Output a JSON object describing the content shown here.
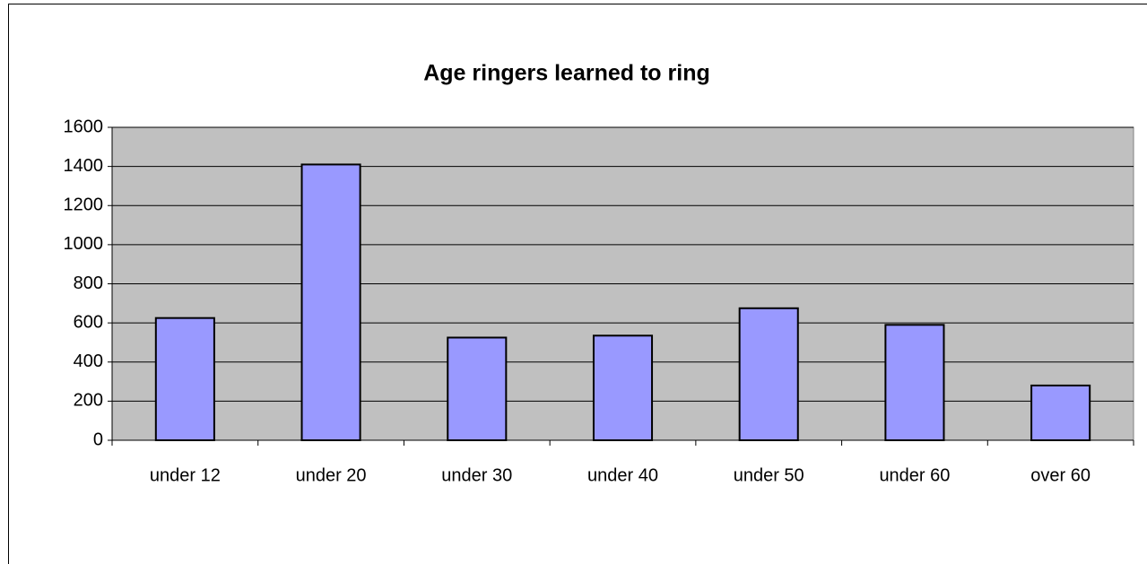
{
  "chart_data": {
    "type": "bar",
    "title": "Age ringers learned to ring",
    "categories": [
      "under 12",
      "under 20",
      "under 30",
      "under 40",
      "under 50",
      "under 60",
      "over 60"
    ],
    "values": [
      625,
      1410,
      525,
      535,
      675,
      590,
      280
    ],
    "color": "#9999ff",
    "ylim": [
      0,
      1600
    ],
    "yticks": [
      0,
      200,
      400,
      600,
      800,
      1000,
      1200,
      1400,
      1600
    ],
    "grid": true
  }
}
